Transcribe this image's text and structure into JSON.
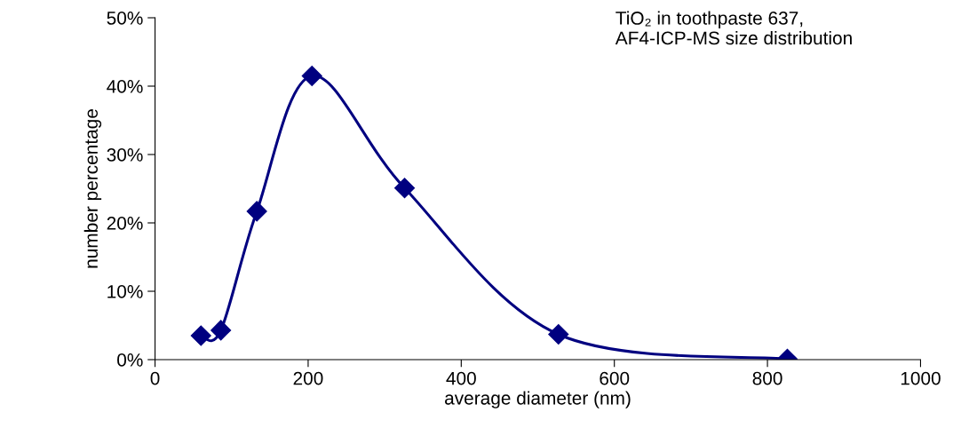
{
  "chart_data": {
    "type": "line",
    "xlabel": "average diameter (nm)",
    "ylabel": "number percentage",
    "annotations": [
      "TiO₂ in toothpaste 637,\nAF4-ICP-MS size distribution"
    ],
    "x": [
      60,
      86,
      133,
      205,
      326,
      527,
      826
    ],
    "series": [
      {
        "color": "#000080",
        "values": [
          3.5,
          4.3,
          21.7,
          41.5,
          25.1,
          3.7,
          0.1
        ]
      }
    ],
    "xlim": [
      0,
      1000
    ],
    "xticks": [
      0,
      200,
      400,
      600,
      800,
      1000
    ],
    "ylim": [
      0,
      50
    ],
    "yticks": [
      {
        "value": 0,
        "label": "0%"
      },
      {
        "value": 10,
        "label": "10%"
      },
      {
        "value": 20,
        "label": "20%"
      },
      {
        "value": 30,
        "label": "30%"
      },
      {
        "value": 40,
        "label": "40%"
      },
      {
        "value": 50,
        "label": "50%"
      }
    ],
    "marker": "diamond",
    "grid": false
  }
}
